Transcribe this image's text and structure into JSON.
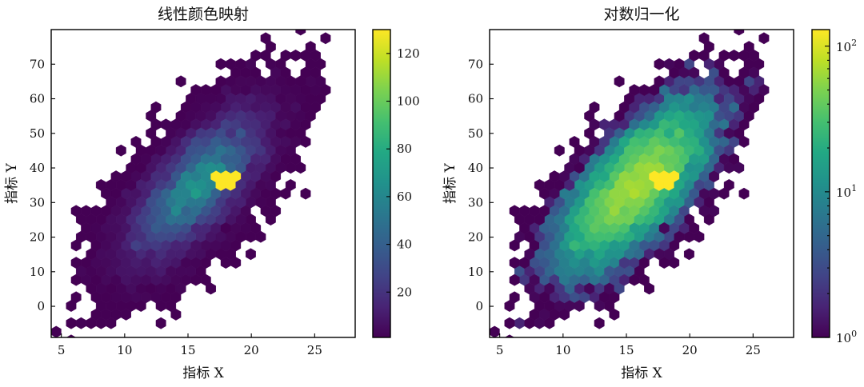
{
  "chart_data": [
    {
      "type": "hexbin",
      "title": "线性颜色映射",
      "xlabel": "指标 X",
      "ylabel": "指标 Y",
      "xlim": [
        4.2,
        28.2
      ],
      "ylim": [
        -9,
        80
      ],
      "xticks": [
        5,
        10,
        15,
        20,
        25
      ],
      "yticks": [
        0,
        10,
        20,
        30,
        40,
        50,
        60,
        70
      ],
      "colormap": "viridis",
      "color_scale": "linear",
      "colorbar": {
        "range": [
          1,
          130
        ],
        "ticks": [
          20,
          40,
          60,
          80,
          100,
          120
        ]
      },
      "distribution": {
        "center": [
          15.8,
          35.0
        ],
        "sd": [
          3.0,
          12.0
        ],
        "correlation": 0.7,
        "n_points": 10000,
        "peak_count": 130,
        "peak_at": [
          18.0,
          36.5
        ]
      }
    },
    {
      "type": "hexbin",
      "title": "对数归一化",
      "xlabel": "指标 X",
      "ylabel": "指标 Y",
      "xlim": [
        4.2,
        28.2
      ],
      "ylim": [
        -9,
        80
      ],
      "xticks": [
        5,
        10,
        15,
        20,
        25
      ],
      "yticks": [
        0,
        10,
        20,
        30,
        40,
        50,
        60,
        70
      ],
      "colormap": "viridis",
      "color_scale": "log",
      "colorbar": {
        "range": [
          1,
          130
        ],
        "ticks": [
          {
            "value": 1,
            "base": "10",
            "exp": "0"
          },
          {
            "value": 10,
            "base": "10",
            "exp": "1"
          },
          {
            "value": 100,
            "base": "10",
            "exp": "2"
          }
        ]
      },
      "distribution": {
        "center": [
          15.8,
          35.0
        ],
        "sd": [
          3.0,
          12.0
        ],
        "correlation": 0.7,
        "n_points": 10000,
        "peak_count": 130,
        "peak_at": [
          18.0,
          36.5
        ]
      }
    }
  ]
}
